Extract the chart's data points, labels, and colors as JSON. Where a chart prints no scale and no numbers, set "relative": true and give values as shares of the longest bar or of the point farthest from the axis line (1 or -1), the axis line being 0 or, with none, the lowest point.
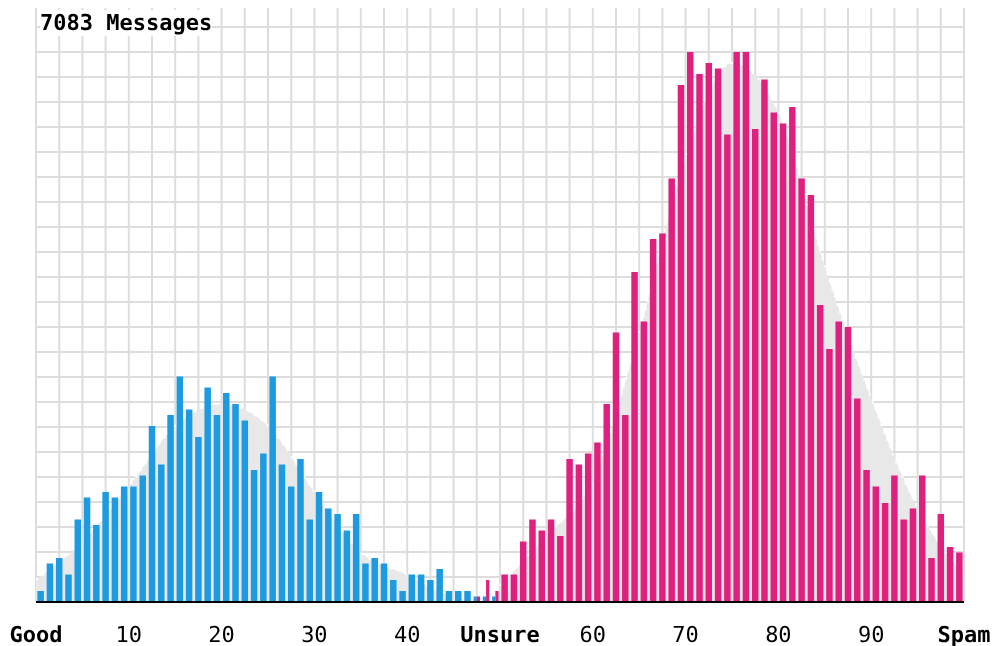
{
  "chart_data": {
    "type": "histogram",
    "title": "7083 Messages",
    "relative": true,
    "grid": true,
    "xlim": [
      0,
      100
    ],
    "xticks": [
      {
        "value": 0,
        "label": "Good"
      },
      {
        "value": 2.5,
        "label": null
      },
      {
        "value": 5,
        "label": null
      },
      {
        "value": 7.5,
        "label": null
      },
      10,
      {
        "value": 12.5,
        "label": null
      },
      {
        "value": 15,
        "label": null
      },
      {
        "value": 17.5,
        "label": null
      },
      20,
      {
        "value": 22.5,
        "label": null
      },
      {
        "value": 25,
        "label": null
      },
      {
        "value": 27.5,
        "label": null
      },
      30,
      {
        "value": 32.5,
        "label": null
      },
      {
        "value": 35,
        "label": null
      },
      {
        "value": 37.5,
        "label": null
      },
      40,
      {
        "value": 42.5,
        "label": null
      },
      {
        "value": 45,
        "label": null
      },
      {
        "value": 47.5,
        "label": null
      },
      {
        "value": 50,
        "label": "Unsure"
      },
      {
        "value": 52.5,
        "label": null
      },
      {
        "value": 55,
        "label": null
      },
      {
        "value": 57.5,
        "label": null
      },
      60,
      {
        "value": 62.5,
        "label": null
      },
      {
        "value": 65,
        "label": null
      },
      {
        "value": 67.5,
        "label": null
      },
      70,
      {
        "value": 72.5,
        "label": null
      },
      {
        "value": 75,
        "label": null
      },
      {
        "value": 77.5,
        "label": null
      },
      80,
      {
        "value": 82.5,
        "label": null
      },
      {
        "value": 85,
        "label": null
      },
      {
        "value": 87.5,
        "label": null
      },
      90,
      {
        "value": 92.5,
        "label": null
      },
      {
        "value": 95,
        "label": null
      },
      {
        "value": 97.5,
        "label": null
      },
      {
        "value": 100,
        "label": "Spam"
      }
    ],
    "bins": [
      0,
      1,
      2,
      3,
      4,
      5,
      6,
      7,
      8,
      9,
      10,
      11,
      12,
      13,
      14,
      15,
      16,
      17,
      18,
      19,
      20,
      21,
      22,
      23,
      24,
      25,
      26,
      27,
      28,
      29,
      30,
      31,
      32,
      33,
      34,
      35,
      36,
      37,
      38,
      39,
      40,
      41,
      42,
      43,
      44,
      45,
      46,
      47,
      48,
      49,
      50,
      51,
      52,
      53,
      54,
      55,
      56,
      57,
      58,
      59,
      60,
      61,
      62,
      63,
      64,
      65,
      66,
      67,
      68,
      69,
      70,
      71,
      72,
      73,
      74,
      75,
      76,
      77,
      78,
      79,
      80,
      81,
      82,
      83,
      84,
      85,
      86,
      87,
      88,
      89,
      90,
      91,
      92,
      93,
      94,
      95,
      96,
      97,
      98,
      99,
      100
    ],
    "series": [
      {
        "type": "area",
        "color": "#e8e8e8",
        "line_style": "dotted",
        "x": [
          0,
          5,
          10,
          15,
          20,
          25,
          30,
          35,
          40,
          45,
          50
        ],
        "values": [
          0.04,
          0.11,
          0.21,
          0.32,
          0.36,
          0.32,
          0.2,
          0.09,
          0.05,
          0.01,
          0
        ]
      },
      {
        "type": "area",
        "color": "#e8e8e8",
        "line_style": "dotted",
        "x": [
          50,
          55,
          60,
          65,
          70,
          75,
          80,
          85,
          90,
          95,
          100
        ],
        "values": [
          0.03,
          0.12,
          0.22,
          0.49,
          0.81,
          0.98,
          0.89,
          0.61,
          0.37,
          0.17,
          0.05
        ]
      },
      {
        "color": "#1e9be0",
        "values": [
          0.02,
          0.07,
          0.08,
          0.05,
          0.15,
          0.19,
          0.14,
          0.2,
          0.19,
          0.21,
          0.21,
          0.23,
          0.32,
          0.25,
          0.34,
          0.41,
          0.35,
          0.3,
          0.39,
          0.34,
          0.38,
          0.36,
          0.33,
          0.24,
          0.27,
          0.41,
          0.25,
          0.21,
          0.26,
          0.15,
          0.2,
          0.17,
          0.16,
          0.13,
          0.16,
          0.07,
          0.08,
          0.07,
          0.04,
          0.02,
          0.05,
          0.05,
          0.04,
          0.06,
          0.02,
          0.02,
          0.02,
          0.01,
          0.01,
          0.01,
          0,
          0,
          0,
          0,
          0,
          0,
          0,
          0,
          0,
          0,
          0,
          0,
          0,
          0,
          0,
          0,
          0,
          0,
          0,
          0,
          0,
          0,
          0,
          0,
          0,
          0,
          0,
          0,
          0,
          0,
          0,
          0,
          0,
          0,
          0,
          0,
          0,
          0,
          0,
          0,
          0,
          0,
          0,
          0,
          0,
          0,
          0,
          0,
          0,
          0
        ]
      },
      {
        "color": "#e0207e",
        "values": [
          0,
          0,
          0,
          0,
          0,
          0,
          0,
          0,
          0,
          0,
          0,
          0,
          0,
          0,
          0,
          0,
          0,
          0,
          0,
          0,
          0,
          0,
          0,
          0,
          0,
          0,
          0,
          0,
          0,
          0,
          0,
          0,
          0,
          0,
          0,
          0,
          0,
          0,
          0,
          0,
          0,
          0,
          0,
          0,
          0,
          0,
          0,
          0.01,
          0.04,
          0.02,
          0.05,
          0.05,
          0.11,
          0.15,
          0.13,
          0.15,
          0.12,
          0.26,
          0.25,
          0.27,
          0.29,
          0.36,
          0.49,
          0.34,
          0.6,
          0.51,
          0.66,
          0.67,
          0.77,
          0.94,
          1,
          0.96,
          0.98,
          0.97,
          0.85,
          1,
          1,
          0.86,
          0.95,
          0.89,
          0.87,
          0.9,
          0.77,
          0.74,
          0.54,
          0.46,
          0.51,
          0.5,
          0.37,
          0.24,
          0.21,
          0.18,
          0.23,
          0.15,
          0.17,
          0.23,
          0.08,
          0.16,
          0.1,
          0.09
        ]
      }
    ]
  }
}
